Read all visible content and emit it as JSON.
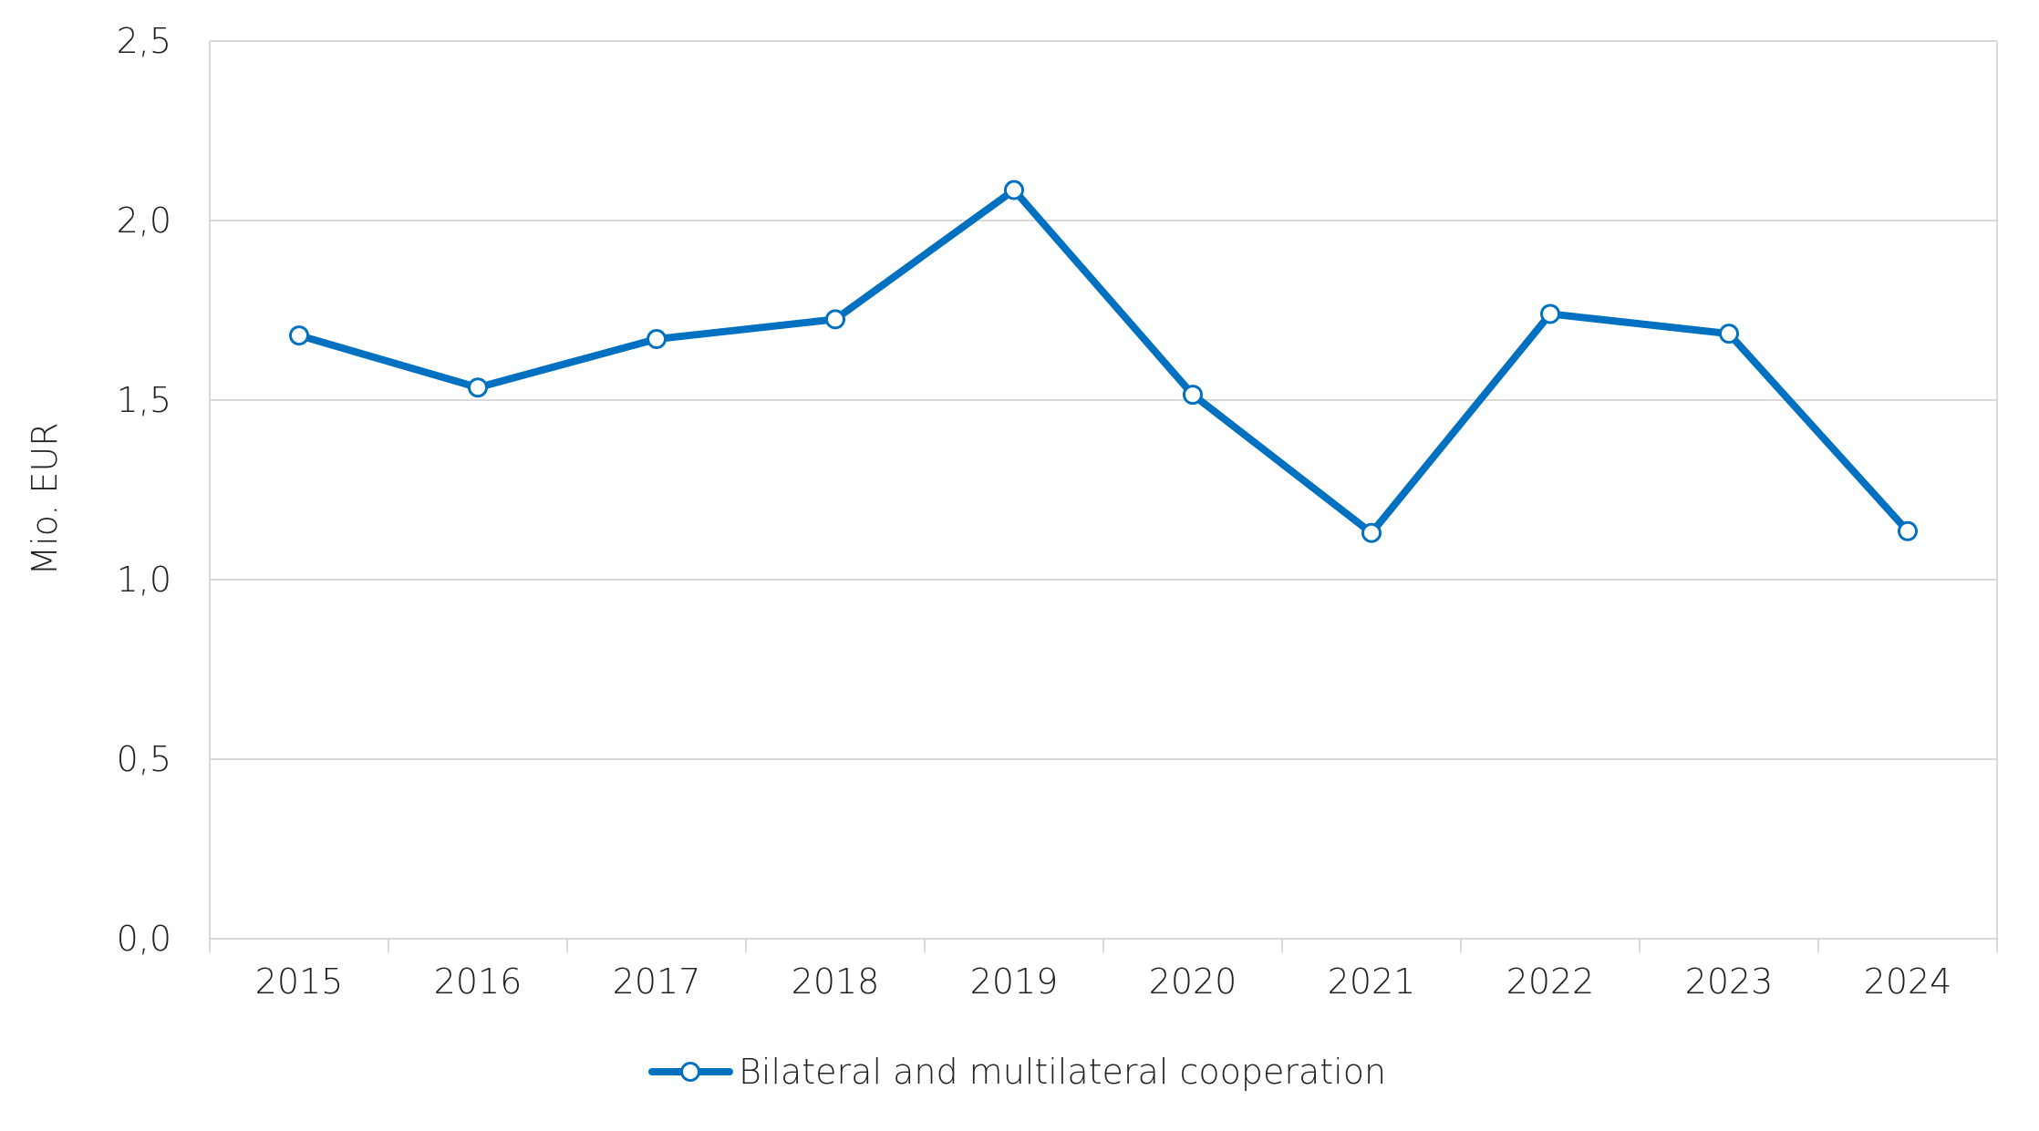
{
  "chart_data": {
    "type": "line",
    "title": "",
    "xlabel": "",
    "ylabel": "Mio. EUR",
    "categories": [
      "2015",
      "2016",
      "2017",
      "2018",
      "2019",
      "2020",
      "2021",
      "2022",
      "2023",
      "2024"
    ],
    "series": [
      {
        "name": "Bilateral and multilateral cooperation",
        "values": [
          1.68,
          1.535,
          1.67,
          1.725,
          2.085,
          1.515,
          1.13,
          1.74,
          1.685,
          1.135
        ],
        "color": "#0070C0",
        "marker": "circle-hollow"
      }
    ],
    "ylim": [
      0,
      2.5
    ],
    "yticks": [
      "0,0",
      "0,5",
      "1,0",
      "1,5",
      "2,0",
      "2,5"
    ],
    "ytick_values": [
      0,
      0.5,
      1.0,
      1.5,
      2.0,
      2.5
    ],
    "grid": "horizontal",
    "legend_position": "bottom-center"
  }
}
